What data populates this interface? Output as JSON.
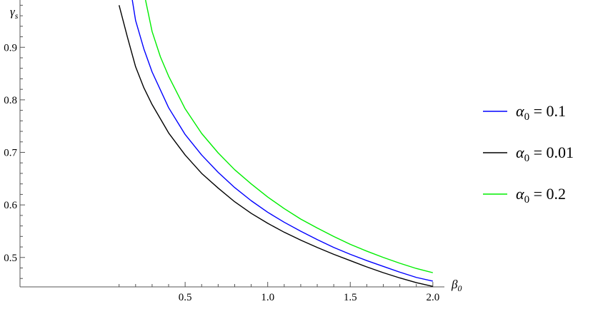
{
  "chart_data": {
    "type": "line",
    "title": "",
    "xlabel": "β0",
    "ylabel": "γs",
    "xlabel_parts": {
      "base": "β",
      "sub": "0"
    },
    "ylabel_parts": {
      "base": "γ",
      "sub": "s"
    },
    "xlim": [
      -0.5,
      2.07
    ],
    "ylim": [
      0.444,
      0.99
    ],
    "x_ticks": [
      0.5,
      1.0,
      1.5,
      2.0
    ],
    "x_tick_labels": [
      "0.5",
      "1.0",
      "1.5",
      "2.0"
    ],
    "y_ticks": [
      0.5,
      0.6,
      0.7,
      0.8,
      0.9
    ],
    "y_tick_labels": [
      "0.5",
      "0.6",
      "0.7",
      "0.8",
      "0.9"
    ],
    "grid": false,
    "legend_position": "right",
    "series": [
      {
        "name": "α0 = 0.1",
        "label_parts": {
          "base": "α",
          "sub": "0",
          "rest": " = 0.1"
        },
        "color": "#0000ff",
        "x": [
          0.18,
          0.2,
          0.25,
          0.3,
          0.4,
          0.5,
          0.6,
          0.7,
          0.8,
          0.9,
          1.0,
          1.1,
          1.2,
          1.3,
          1.4,
          1.5,
          1.6,
          1.7,
          1.8,
          1.9,
          2.0
        ],
        "y": [
          0.99,
          0.951,
          0.897,
          0.853,
          0.785,
          0.734,
          0.695,
          0.662,
          0.633,
          0.608,
          0.586,
          0.567,
          0.55,
          0.534,
          0.519,
          0.506,
          0.494,
          0.483,
          0.472,
          0.462,
          0.455
        ]
      },
      {
        "name": "α0 = 0.01",
        "label_parts": {
          "base": "α",
          "sub": "0",
          "rest": " = 0.01"
        },
        "color": "#000000",
        "x": [
          0.1,
          0.15,
          0.2,
          0.25,
          0.3,
          0.4,
          0.5,
          0.6,
          0.7,
          0.8,
          0.9,
          1.0,
          1.1,
          1.2,
          1.3,
          1.4,
          1.5,
          1.6,
          1.7,
          1.8,
          1.9,
          2.0
        ],
        "y": [
          0.98,
          0.92,
          0.863,
          0.823,
          0.791,
          0.737,
          0.695,
          0.66,
          0.632,
          0.606,
          0.584,
          0.565,
          0.548,
          0.533,
          0.519,
          0.506,
          0.494,
          0.482,
          0.471,
          0.461,
          0.452,
          0.445
        ]
      },
      {
        "name": "α0 = 0.2",
        "label_parts": {
          "base": "α",
          "sub": "0",
          "rest": " = 0.2"
        },
        "color": "#00ee00",
        "x": [
          0.26,
          0.3,
          0.35,
          0.4,
          0.5,
          0.6,
          0.7,
          0.8,
          0.9,
          1.0,
          1.1,
          1.2,
          1.3,
          1.4,
          1.5,
          1.6,
          1.7,
          1.8,
          1.9,
          2.0
        ],
        "y": [
          0.99,
          0.93,
          0.882,
          0.845,
          0.783,
          0.736,
          0.699,
          0.667,
          0.64,
          0.615,
          0.593,
          0.573,
          0.556,
          0.54,
          0.525,
          0.512,
          0.5,
          0.489,
          0.479,
          0.471
        ]
      }
    ]
  }
}
